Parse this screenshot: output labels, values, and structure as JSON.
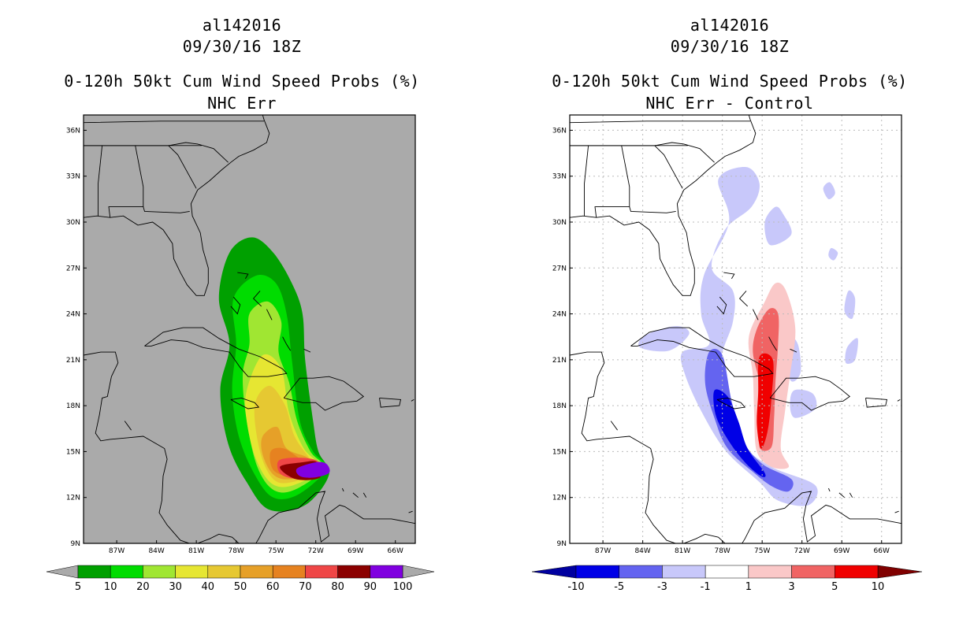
{
  "chart_data": [
    {
      "type": "heatmap",
      "title": "al142016",
      "subtitle": "09/30/16 18Z",
      "product": "0-120h 50kt Cum Wind Speed Probs (%)",
      "panel_label": "NHC Err",
      "x_tick_labels": [
        "87W",
        "84W",
        "81W",
        "78W",
        "75W",
        "72W",
        "69W",
        "66W"
      ],
      "y_tick_labels": [
        "36N",
        "33N",
        "30N",
        "27N",
        "24N",
        "21N",
        "18N",
        "15N",
        "12N",
        "9N"
      ],
      "lon_range": [
        -89.5,
        -64.5
      ],
      "lat_range": [
        9,
        37
      ],
      "grid": false,
      "background_color": "#aaaaaa",
      "colorbar": {
        "labels": [
          "5",
          "10",
          "20",
          "30",
          "40",
          "50",
          "60",
          "70",
          "80",
          "90",
          "100"
        ],
        "colors": [
          "#00a000",
          "#00dc00",
          "#a0e632",
          "#e6e632",
          "#e6c832",
          "#e6a028",
          "#e68220",
          "#ef4646",
          "#8b0000",
          "#8000e0"
        ],
        "left_arrow": "#aaaaaa",
        "right_arrow": "#aaaaaa"
      },
      "contours": [
        {
          "level": "5-10",
          "color": "#00a000",
          "points": [
            [
              -78.5,
              22
            ],
            [
              -79.3,
              25
            ],
            [
              -78.5,
              28
            ],
            [
              -76.8,
              29
            ],
            [
              -75.2,
              28
            ],
            [
              -73.8,
              26
            ],
            [
              -73.0,
              24
            ],
            [
              -72.8,
              21
            ],
            [
              -72.2,
              17
            ],
            [
              -71.8,
              15
            ],
            [
              -71.0,
              13.5
            ],
            [
              -72.8,
              11.5
            ],
            [
              -75.5,
              11.2
            ],
            [
              -77.2,
              13
            ],
            [
              -78.6,
              15.5
            ],
            [
              -79.2,
              19
            ]
          ]
        },
        {
          "level": "10-20",
          "color": "#00dc00",
          "points": [
            [
              -78.0,
              22
            ],
            [
              -78.2,
              25
            ],
            [
              -76.5,
              26.5
            ],
            [
              -75.0,
              26
            ],
            [
              -74.2,
              24
            ],
            [
              -73.8,
              21
            ],
            [
              -73.2,
              17
            ],
            [
              -72.2,
              15
            ],
            [
              -71.2,
              13.9
            ],
            [
              -73.3,
              12.2
            ],
            [
              -75.2,
              12.0
            ],
            [
              -76.6,
              13.5
            ],
            [
              -77.8,
              16
            ],
            [
              -78.3,
              19
            ]
          ]
        },
        {
          "level": "20-30",
          "color": "#a0e632",
          "points": [
            [
              -77.0,
              22
            ],
            [
              -77.0,
              24
            ],
            [
              -75.6,
              24.8
            ],
            [
              -74.6,
              23.5
            ],
            [
              -74.8,
              21.5
            ],
            [
              -74.0,
              19.5
            ],
            [
              -73.4,
              17
            ],
            [
              -72.4,
              15
            ],
            [
              -71.4,
              13.9
            ],
            [
              -73.6,
              12.5
            ],
            [
              -75.2,
              12.5
            ],
            [
              -76.4,
              14
            ],
            [
              -77.2,
              17
            ],
            [
              -77.5,
              20
            ]
          ]
        },
        {
          "level": "30-40",
          "color": "#e6e632",
          "points": [
            [
              -77.2,
              19
            ],
            [
              -76.0,
              21.3
            ],
            [
              -74.6,
              20.4
            ],
            [
              -74.0,
              17.5
            ],
            [
              -72.9,
              15.2
            ],
            [
              -71.6,
              13.9
            ],
            [
              -73.7,
              12.8
            ],
            [
              -75.3,
              12.9
            ],
            [
              -76.5,
              14.5
            ],
            [
              -77.2,
              17
            ]
          ]
        },
        {
          "level": "40-50",
          "color": "#e6c832",
          "points": [
            [
              -76.6,
              18
            ],
            [
              -75.5,
              19.3
            ],
            [
              -74.3,
              18
            ],
            [
              -73.6,
              16
            ],
            [
              -72.4,
              14.5
            ],
            [
              -71.7,
              13.8
            ],
            [
              -73.8,
              13.0
            ],
            [
              -75.2,
              13.2
            ],
            [
              -76.2,
              15
            ]
          ]
        },
        {
          "level": "50-60",
          "color": "#e6a028",
          "points": [
            [
              -76.0,
              16
            ],
            [
              -74.9,
              16.6
            ],
            [
              -74.2,
              15.2
            ],
            [
              -72.6,
              14.6
            ],
            [
              -71.8,
              13.8
            ],
            [
              -73.9,
              13.2
            ],
            [
              -75.2,
              13.5
            ],
            [
              -76.0,
              14.8
            ]
          ]
        },
        {
          "level": "60-70",
          "color": "#e68220",
          "points": [
            [
              -75.4,
              15
            ],
            [
              -74.4,
              15.2
            ],
            [
              -73.0,
              14.4
            ],
            [
              -71.9,
              13.7
            ],
            [
              -73.9,
              13.4
            ],
            [
              -75.2,
              13.8
            ]
          ]
        },
        {
          "level": "70-80",
          "color": "#ef4646",
          "points": [
            [
              -74.8,
              14.4
            ],
            [
              -73.4,
              14.6
            ],
            [
              -71.9,
              14.4
            ],
            [
              -71.5,
              13.6
            ],
            [
              -73.0,
              13.2
            ],
            [
              -74.6,
              13.5
            ]
          ]
        },
        {
          "level": "80-90",
          "color": "#8b0000",
          "points": [
            [
              -74.7,
              14.0
            ],
            [
              -73.0,
              14.3
            ],
            [
              -71.9,
              14.3
            ],
            [
              -71.7,
              13.3
            ],
            [
              -73.5,
              13.2
            ]
          ]
        },
        {
          "level": "90-100",
          "color": "#8000e0",
          "points": [
            [
              -73.4,
              13.9
            ],
            [
              -72.0,
              14.3
            ],
            [
              -71.2,
              14.2
            ],
            [
              -71.0,
              13.6
            ],
            [
              -72.2,
              13.3
            ],
            [
              -73.2,
              13.4
            ]
          ]
        }
      ]
    },
    {
      "type": "heatmap",
      "title": "al142016",
      "subtitle": "09/30/16 18Z",
      "product": "0-120h 50kt Cum Wind Speed Probs (%)",
      "panel_label": "NHC Err - Control",
      "x_tick_labels": [
        "87W",
        "84W",
        "81W",
        "78W",
        "75W",
        "72W",
        "69W",
        "66W"
      ],
      "y_tick_labels": [
        "36N",
        "33N",
        "30N",
        "27N",
        "24N",
        "21N",
        "18N",
        "15N",
        "12N",
        "9N"
      ],
      "lon_range": [
        -89.5,
        -64.5
      ],
      "lat_range": [
        9,
        37
      ],
      "grid": true,
      "background_color": "#ffffff",
      "colorbar": {
        "labels": [
          "-10",
          "-5",
          "-3",
          "-1",
          "1",
          "3",
          "5",
          "10"
        ],
        "colors": [
          "#0000e6",
          "#6464f0",
          "#c8c8fa",
          "#ffffff",
          "#fac8c8",
          "#f06464",
          "#f00000"
        ],
        "left_arrow": "#0000a0",
        "right_arrow": "#800000"
      },
      "contours": [
        {
          "level": "-3 to -1",
          "color": "#c8c8fa",
          "points": [
            [
              -81.0,
              21.5
            ],
            [
              -80.8,
              20
            ],
            [
              -79.5,
              17.5
            ],
            [
              -77.7,
              15
            ],
            [
              -75.2,
              13
            ],
            [
              -73.8,
              11.8
            ],
            [
              -71.5,
              11.5
            ],
            [
              -71.0,
              12.8
            ],
            [
              -74.3,
              14.0
            ],
            [
              -76.5,
              15.5
            ],
            [
              -77.8,
              18
            ],
            [
              -78.1,
              21
            ],
            [
              -77.2,
              23.5
            ],
            [
              -77.2,
              25.5
            ],
            [
              -78.8,
              27
            ],
            [
              -77.8,
              29.5
            ],
            [
              -75.8,
              31
            ],
            [
              -75.2,
              32.5
            ],
            [
              -76.2,
              33.6
            ],
            [
              -78.3,
              32.8
            ],
            [
              -77.5,
              30
            ],
            [
              -79.4,
              26.5
            ],
            [
              -79.6,
              24
            ],
            [
              -79.0,
              22
            ]
          ]
        },
        {
          "level": "-3 to -1",
          "color": "#c8c8fa",
          "points": [
            [
              -84.2,
              21.8
            ],
            [
              -82.0,
              21.6
            ],
            [
              -80.5,
              22.7
            ],
            [
              -81.5,
              23.2
            ],
            [
              -83.8,
              22.6
            ]
          ]
        },
        {
          "level": "-3 to -1",
          "color": "#c8c8fa",
          "points": [
            [
              -74.0,
              31
            ],
            [
              -73.4,
              30.5
            ],
            [
              -72.8,
              29.2
            ],
            [
              -74.4,
              28.5
            ],
            [
              -74.8,
              30
            ]
          ]
        },
        {
          "level": "-3 to -1",
          "color": "#c8c8fa",
          "points": [
            [
              -73.0,
              22.5
            ],
            [
              -72.3,
              22
            ],
            [
              -72.1,
              20.2
            ],
            [
              -72.8,
              19.6
            ],
            [
              -73.3,
              21
            ]
          ]
        },
        {
          "level": "-3 to -1",
          "color": "#c8c8fa",
          "points": [
            [
              -72.6,
              19
            ],
            [
              -71.2,
              18.8
            ],
            [
              -71.0,
              17.8
            ],
            [
              -72.5,
              17.2
            ],
            [
              -72.9,
              18
            ]
          ]
        },
        {
          "level": "-3 to -1",
          "color": "#c8c8fa",
          "points": [
            [
              -68.5,
              25.5
            ],
            [
              -68.0,
              25.0
            ],
            [
              -68.2,
              23.7
            ],
            [
              -68.8,
              24.2
            ]
          ]
        },
        {
          "level": "-3 to -1",
          "color": "#c8c8fa",
          "points": [
            [
              -68.6,
              21.8
            ],
            [
              -67.8,
              22.4
            ],
            [
              -68.0,
              21.0
            ],
            [
              -68.7,
              20.8
            ]
          ]
        },
        {
          "level": "-3 to -1",
          "color": "#c8c8fa",
          "points": [
            [
              -70.0,
              27.8
            ],
            [
              -69.8,
              28.3
            ],
            [
              -69.3,
              28.0
            ],
            [
              -69.6,
              27.5
            ]
          ]
        },
        {
          "level": "-3 to -1",
          "color": "#c8c8fa",
          "points": [
            [
              -70.4,
              32.2
            ],
            [
              -69.9,
              32.6
            ],
            [
              -69.5,
              31.9
            ],
            [
              -70.0,
              31.5
            ]
          ]
        },
        {
          "level": "-5 to -3",
          "color": "#6464f0",
          "points": [
            [
              -79.0,
              21.5
            ],
            [
              -79.3,
              19.5
            ],
            [
              -78.6,
              17.2
            ],
            [
              -77.6,
              15.2
            ],
            [
              -75.6,
              13.6
            ],
            [
              -74.2,
              12.7
            ],
            [
              -73.0,
              12.4
            ],
            [
              -72.8,
              13.2
            ],
            [
              -75.0,
              14.2
            ],
            [
              -76.5,
              15.8
            ],
            [
              -77.3,
              18.3
            ],
            [
              -78.0,
              21.3
            ]
          ]
        },
        {
          "level": "-10 to -5",
          "color": "#0000e6",
          "points": [
            [
              -78.6,
              19
            ],
            [
              -78.5,
              17.4
            ],
            [
              -77.6,
              15.8
            ],
            [
              -76.3,
              14.3
            ],
            [
              -75.1,
              13.4
            ],
            [
              -74.8,
              13.6
            ],
            [
              -76.1,
              15.2
            ],
            [
              -76.8,
              17.0
            ],
            [
              -77.6,
              18.6
            ]
          ]
        },
        {
          "level": "1 to 3",
          "color": "#fac8c8",
          "points": [
            [
              -74.0,
              26
            ],
            [
              -73.2,
              25.5
            ],
            [
              -72.5,
              23.0
            ],
            [
              -72.9,
              20
            ],
            [
              -73.3,
              17.5
            ],
            [
              -73.6,
              15.2
            ],
            [
              -73.0,
              14.0
            ],
            [
              -74.3,
              14.0
            ],
            [
              -75.4,
              15.0
            ],
            [
              -75.6,
              17.5
            ],
            [
              -75.7,
              20
            ],
            [
              -76.0,
              22.5
            ],
            [
              -74.8,
              24.8
            ]
          ]
        },
        {
          "level": "1 to 3",
          "color": "#fac8c8",
          "points": [
            [
              -75.8,
              21.6
            ],
            [
              -75.7,
              22.5
            ],
            [
              -74.7,
              22.3
            ],
            [
              -74.9,
              21.5
            ]
          ]
        },
        {
          "level": "3 to 5",
          "color": "#f06464",
          "points": [
            [
              -74.5,
              24.3
            ],
            [
              -73.8,
              24.0
            ],
            [
              -73.8,
              22.0
            ],
            [
              -74.0,
              19.5
            ],
            [
              -74.1,
              17.2
            ],
            [
              -74.3,
              15.3
            ],
            [
              -75.2,
              15.3
            ],
            [
              -75.0,
              17.5
            ],
            [
              -75.2,
              19.5
            ],
            [
              -75.7,
              21.5
            ],
            [
              -75.4,
              23.0
            ]
          ]
        },
        {
          "level": "5 to 10",
          "color": "#f00000",
          "points": [
            [
              -75.2,
              21.2
            ],
            [
              -74.2,
              21.0
            ],
            [
              -74.3,
              18.5
            ],
            [
              -74.6,
              16.3
            ],
            [
              -75.1,
              15.2
            ],
            [
              -75.4,
              16.8
            ],
            [
              -75.3,
              18.8
            ]
          ]
        }
      ]
    }
  ]
}
